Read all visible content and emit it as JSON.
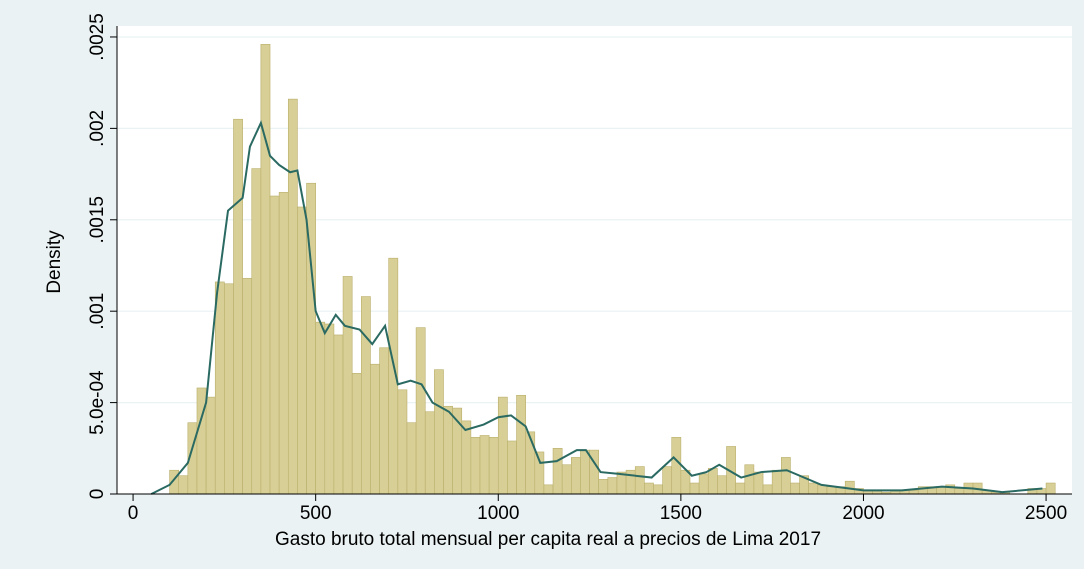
{
  "chart_data": {
    "type": "histogram",
    "xlabel": "Gasto bruto total mensual per capita real a precios de Lima 2017",
    "ylabel": "Density",
    "color": "#d8cf97",
    "edge_color": "#b9ae6a",
    "bins": [
      100,
      125,
      150,
      175,
      200,
      225,
      250,
      275,
      300,
      325,
      350,
      375,
      400,
      425,
      450,
      475,
      500,
      525,
      550,
      575,
      600,
      625,
      650,
      675,
      700,
      725,
      750,
      775,
      800,
      825,
      850,
      875,
      900,
      925,
      950,
      975,
      1000,
      1025,
      1050,
      1075,
      1100,
      1125,
      1150,
      1175,
      1200,
      1225,
      1250,
      1275,
      1300,
      1325,
      1350,
      1375,
      1400,
      1425,
      1450,
      1475,
      1500,
      1525,
      1550,
      1575,
      1600,
      1625,
      1650,
      1675,
      1700,
      1725,
      1750,
      1775,
      1800,
      1825,
      1850,
      1875,
      1900,
      1925,
      1950,
      1975,
      2000,
      2025,
      2050,
      2075,
      2100,
      2125,
      2150,
      2175,
      2200,
      2225,
      2250,
      2275,
      2300,
      2325,
      2350,
      2375,
      2400,
      2425,
      2450,
      2475,
      2500,
      2525
    ],
    "values": [
      0.00013,
      0.0001,
      0.00039,
      0.00058,
      0.00053,
      0.00116,
      0.00115,
      0.00205,
      0.00118,
      0.00178,
      0.00246,
      0.00163,
      0.00165,
      0.00216,
      0.00157,
      0.0017,
      0.00094,
      0.00093,
      0.00087,
      0.00119,
      0.00066,
      0.00108,
      0.00071,
      0.0008,
      0.00129,
      0.00057,
      0.00039,
      0.00091,
      0.00045,
      0.00068,
      0.00048,
      0.00047,
      0.0004,
      0.00031,
      0.00032,
      0.00031,
      0.00053,
      0.00029,
      0.00054,
      0.00034,
      0.00023,
      5e-05,
      0.00025,
      0.00016,
      0.0002,
      0.00024,
      0.00024,
      8e-05,
      9e-05,
      0.00012,
      0.00013,
      0.00015,
      6e-05,
      5e-05,
      0.00015,
      0.00031,
      0.00013,
      6e-05,
      0.00011,
      0.00014,
      0.0001,
      0.00026,
      6e-05,
      0.00016,
      0.00012,
      5e-05,
      0.00013,
      0.0002,
      6e-05,
      0.0001,
      6e-05,
      5e-05,
      4e-05,
      4e-05,
      7e-05,
      3e-05,
      2e-05,
      2e-05,
      1e-05,
      2e-05,
      2e-05,
      2e-05,
      4e-05,
      4e-05,
      4e-05,
      5e-05,
      3e-05,
      6e-05,
      6e-05,
      2e-05,
      1e-05,
      1e-05,
      0,
      0,
      3e-05,
      3e-05,
      6e-05
    ],
    "density": {
      "color": "#2a6a62",
      "x": [
        50,
        100,
        150,
        200,
        230,
        260,
        300,
        320,
        350,
        375,
        400,
        430,
        450,
        475,
        500,
        525,
        555,
        580,
        620,
        655,
        690,
        725,
        760,
        790,
        820,
        865,
        910,
        960,
        1000,
        1035,
        1075,
        1115,
        1160,
        1215,
        1240,
        1280,
        1330,
        1420,
        1480,
        1530,
        1570,
        1605,
        1665,
        1720,
        1790,
        1885,
        2000,
        2105,
        2215,
        2300,
        2380,
        2490
      ],
      "values": [
        0,
        5e-05,
        0.00017,
        0.0005,
        0.0011,
        0.00155,
        0.00162,
        0.0019,
        0.00203,
        0.00185,
        0.0018,
        0.00176,
        0.00177,
        0.0015,
        0.001,
        0.00088,
        0.00098,
        0.00092,
        0.0009,
        0.00082,
        0.00092,
        0.0006,
        0.00062,
        0.0006,
        0.0005,
        0.00045,
        0.00035,
        0.00038,
        0.00042,
        0.00043,
        0.00037,
        0.00017,
        0.00018,
        0.00024,
        0.00024,
        0.00012,
        0.00011,
        9e-05,
        0.0002,
        0.0001,
        0.00012,
        0.00016,
        9e-05,
        0.00012,
        0.00013,
        5e-05,
        2e-05,
        2e-05,
        4e-05,
        3e-05,
        1e-05,
        3e-05
      ]
    },
    "xlim": [
      -44,
      2571
    ],
    "ylim": [
      0,
      0.00256
    ],
    "xticks": [
      0,
      500,
      1000,
      1500,
      2000,
      2500
    ],
    "yticks": [
      0,
      {
        "value": 0.0005,
        "label": "5.0e-04"
      },
      {
        "value": 0.001,
        "label": ".001"
      },
      {
        "value": 0.0015,
        "label": ".0015"
      },
      {
        "value": 0.002,
        "label": ".002"
      },
      {
        "value": 0.0025,
        "label": ".0025"
      }
    ],
    "grid": true
  }
}
